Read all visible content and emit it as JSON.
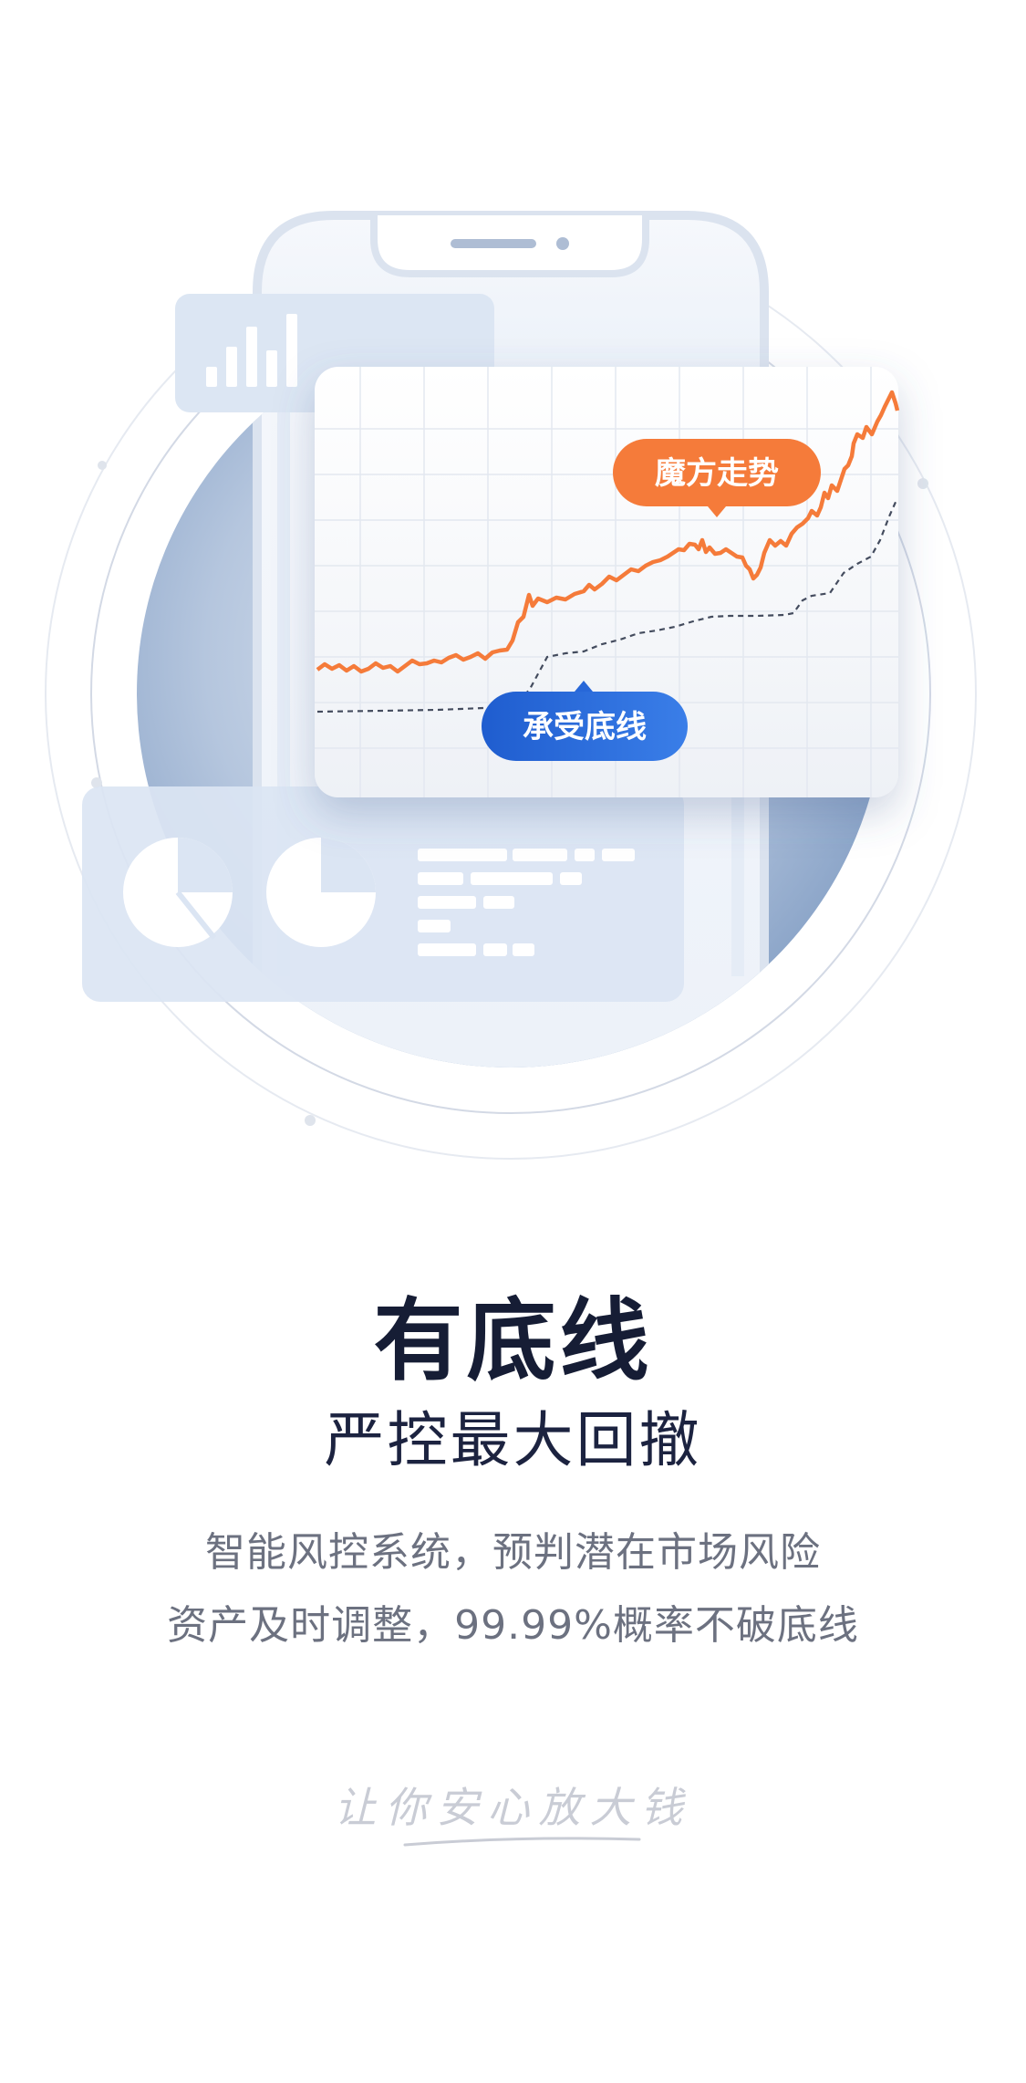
{
  "hero": {
    "badge_orange": "魔方走势",
    "badge_blue": "承受底线"
  },
  "title": "有底线",
  "subtitle": "严控最大回撤",
  "description": [
    "智能风控系统，预判潜在市场风险",
    "资产及时调整，99.99%概率不破底线"
  ],
  "slogan": "让你安心放大钱",
  "colors": {
    "accent_orange": "#f57b3a",
    "accent_blue": "#2767d8",
    "title_dark": "#161d35",
    "text_gray": "#6c7180"
  },
  "icons": [
    "bar-chart-icon",
    "pie-chart-icon",
    "phone-illustration",
    "trend-line-chart"
  ]
}
